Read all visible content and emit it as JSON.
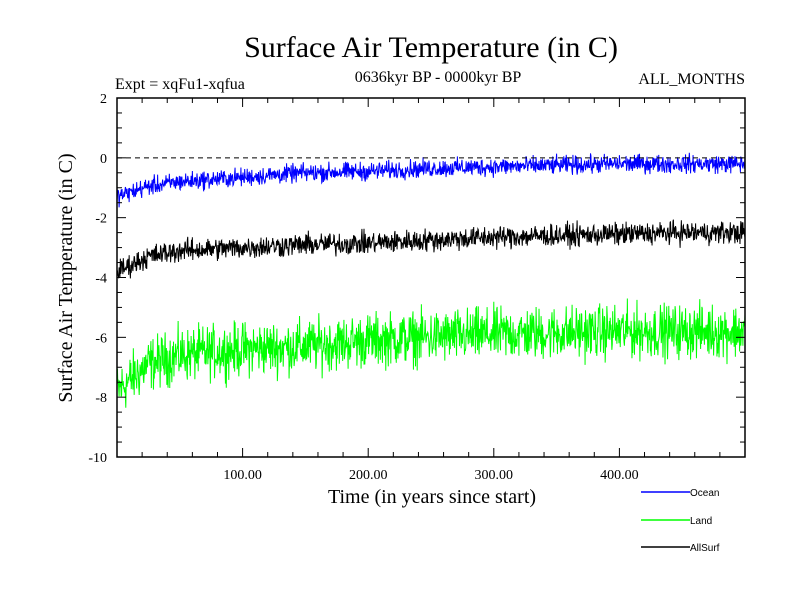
{
  "chart_data": {
    "type": "line",
    "title": "Surface Air Temperature (in C)",
    "subtitle_left": "Expt = xqFu1-xqfua",
    "subtitle_center": "0636kyr BP - 0000kyr BP",
    "subtitle_right": "ALL_MONTHS",
    "xlabel": "Time (in years since start)",
    "ylabel": "Surface Air Temperature (in C)",
    "xlim": [
      0,
      500
    ],
    "ylim": [
      -10,
      2
    ],
    "xticks": [
      100,
      200,
      300,
      400
    ],
    "xtick_labels": [
      "100.00",
      "200.00",
      "300.00",
      "400.00"
    ],
    "yticks": [
      -10,
      -8,
      -6,
      -4,
      -2,
      0,
      2
    ],
    "ytick_labels": [
      "-10",
      "-8",
      "-6",
      "-4",
      "-2",
      "0",
      "2"
    ],
    "reference_line": 0,
    "series": [
      {
        "name": "Ocean",
        "color": "#0000ff",
        "x": [
          0,
          25,
          50,
          100,
          150,
          200,
          250,
          300,
          350,
          400,
          450,
          500
        ],
        "mean": [
          -1.3,
          -0.95,
          -0.8,
          -0.65,
          -0.5,
          -0.45,
          -0.35,
          -0.3,
          -0.25,
          -0.2,
          -0.2,
          -0.2
        ],
        "noise": 0.9
      },
      {
        "name": "Land",
        "color": "#00ff00",
        "x": [
          0,
          25,
          50,
          100,
          150,
          200,
          250,
          300,
          350,
          400,
          450,
          500
        ],
        "mean": [
          -7.8,
          -6.9,
          -6.6,
          -6.4,
          -6.3,
          -6.1,
          -6.0,
          -5.9,
          -5.85,
          -5.8,
          -5.8,
          -5.8
        ],
        "noise": 2.6
      },
      {
        "name": "AllSurf",
        "color": "#000000",
        "x": [
          0,
          25,
          50,
          100,
          150,
          200,
          250,
          300,
          350,
          400,
          450,
          500
        ],
        "mean": [
          -3.8,
          -3.3,
          -3.1,
          -3.0,
          -2.9,
          -2.85,
          -2.75,
          -2.65,
          -2.6,
          -2.55,
          -2.5,
          -2.5
        ],
        "noise": 1.1
      }
    ]
  }
}
